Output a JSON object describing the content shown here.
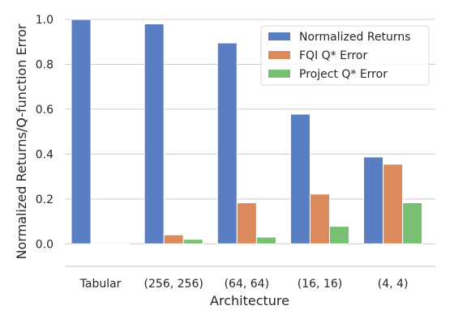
{
  "chart_data": {
    "type": "bar",
    "categories": [
      "Tabular",
      "(256, 256)",
      "(64, 64)",
      "(16, 16)",
      "(4, 4)"
    ],
    "series": [
      {
        "name": "Normalized Returns",
        "color": "#5a7ec4",
        "values": [
          1.0,
          0.98,
          0.895,
          0.578,
          0.387
        ]
      },
      {
        "name": "FQI Q* Error",
        "color": "#db8a5b",
        "values": [
          0.0,
          0.04,
          0.183,
          0.222,
          0.355
        ]
      },
      {
        "name": "Project Q* Error",
        "color": "#77bf71",
        "values": [
          0.0,
          0.02,
          0.03,
          0.078,
          0.183
        ]
      }
    ],
    "title": "",
    "xlabel": "Architecture",
    "ylabel": "Normalized Returns/Q-function Error",
    "ylim": [
      -0.1,
      1.0
    ],
    "yticks": [
      0.0,
      0.2,
      0.4,
      0.6,
      0.8,
      1.0
    ],
    "ytick_labels": [
      "0.0",
      "0.2",
      "0.4",
      "0.6",
      "0.8",
      "1.0"
    ],
    "grid": "horizontal",
    "legend_position": "top-right"
  }
}
